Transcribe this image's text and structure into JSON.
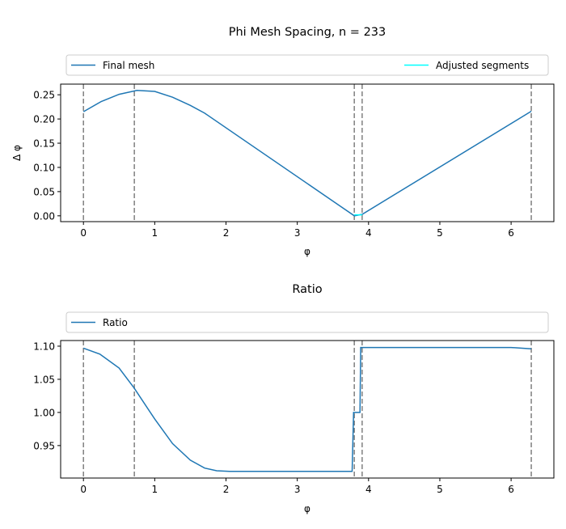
{
  "chart_data": [
    {
      "type": "line",
      "title": "Phi Mesh Spacing, n = 233",
      "xlabel": "φ",
      "ylabel": "Δ φ",
      "xlim": [
        -0.32,
        6.6
      ],
      "ylim": [
        -0.012,
        0.272
      ],
      "xticks": [
        "0",
        "1",
        "2",
        "3",
        "4",
        "5",
        "6"
      ],
      "yticks": [
        "0.00",
        "0.05",
        "0.10",
        "0.15",
        "0.20",
        "0.25"
      ],
      "grid": false,
      "legend": {
        "placement": "top, spanning",
        "entries": [
          "Final mesh",
          "Adjusted segments"
        ]
      },
      "vlines": [
        0,
        0.714,
        3.8,
        3.91,
        6.283
      ],
      "series": [
        {
          "name": "Final mesh",
          "color": "#1f77b4",
          "x": [
            0,
            0.25,
            0.5,
            0.75,
            1.0,
            1.25,
            1.5,
            1.7,
            3.8,
            3.91,
            6.283
          ],
          "y": [
            0.215,
            0.236,
            0.251,
            0.259,
            0.257,
            0.245,
            0.228,
            0.212,
            0.0,
            0.003,
            0.216
          ]
        },
        {
          "name": "Adjusted segments",
          "color": "#00ffff",
          "x": [
            3.8,
            3.91
          ],
          "y": [
            0.002,
            0.002
          ]
        }
      ]
    },
    {
      "type": "line",
      "title": "Ratio",
      "xlabel": "φ",
      "ylabel": "",
      "xlim": [
        -0.32,
        6.6
      ],
      "ylim": [
        0.901,
        1.1085
      ],
      "xticks": [
        "0",
        "1",
        "2",
        "3",
        "4",
        "5",
        "6"
      ],
      "yticks": [
        "0.95",
        "1.00",
        "1.05",
        "1.10"
      ],
      "grid": false,
      "legend": {
        "placement": "top, spanning",
        "entries": [
          "Ratio"
        ]
      },
      "vlines": [
        0,
        0.714,
        3.8,
        3.91,
        6.283
      ],
      "series": [
        {
          "name": "Ratio",
          "color": "#1f77b4",
          "x": [
            0,
            0.23,
            0.5,
            0.71,
            1.0,
            1.25,
            1.5,
            1.7,
            1.87,
            2.05,
            3.77,
            3.79,
            3.88,
            3.89,
            6.0,
            6.283
          ],
          "y": [
            1.097,
            1.088,
            1.067,
            1.037,
            0.99,
            0.953,
            0.928,
            0.916,
            0.912,
            0.911,
            0.911,
            1.0,
            1.0,
            1.098,
            1.098,
            1.096
          ]
        }
      ]
    }
  ]
}
